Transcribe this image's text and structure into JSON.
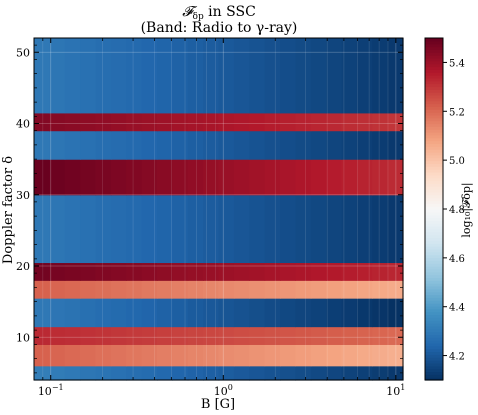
{
  "chart_data": {
    "type": "heatmap",
    "title_line1": "𝓕",
    "title_sub": "δp",
    "title_line1_rest": " in SSC",
    "title_line2": "(Band: Radio to γ-ray)",
    "xlabel": "B [G]",
    "ylabel": "Doppler factor δ",
    "x_scale": "log",
    "xlim": [
      0.08,
      11
    ],
    "ylim": [
      4,
      52
    ],
    "x_ticks": [
      {
        "value": 0.1,
        "base": "10",
        "exp": "−1"
      },
      {
        "value": 1,
        "base": "10",
        "exp": "0"
      },
      {
        "value": 10,
        "base": "10",
        "exp": "1"
      }
    ],
    "y_ticks": [
      10,
      20,
      30,
      40,
      50
    ],
    "grid": true,
    "colormap": "RdBu_r",
    "colorbar": {
      "label": "log₁₀|𝓕δp|",
      "vmin": 4.1,
      "vmax": 5.5,
      "ticks": [
        "4.2",
        "4.4",
        "4.6",
        "4.8",
        "5.0",
        "5.2",
        "5.4"
      ],
      "tick_values": [
        4.2,
        4.4,
        4.6,
        4.8,
        5.0,
        5.2,
        5.4
      ]
    },
    "bands": [
      {
        "y_from": 4,
        "y_to": 6,
        "left": 4.32,
        "right": 4.12
      },
      {
        "y_from": 6,
        "y_to": 9,
        "left": 5.22,
        "right": 5.05
      },
      {
        "y_from": 9,
        "y_to": 11.5,
        "left": 5.33,
        "right": 5.2
      },
      {
        "y_from": 11.5,
        "y_to": 15.5,
        "left": 4.3,
        "right": 4.1
      },
      {
        "y_from": 15.5,
        "y_to": 18,
        "left": 5.22,
        "right": 5.06
      },
      {
        "y_from": 18,
        "y_to": 20.5,
        "left": 5.48,
        "right": 5.33
      },
      {
        "y_from": 20.5,
        "y_to": 30,
        "left": 4.3,
        "right": 4.12
      },
      {
        "y_from": 30,
        "y_to": 35,
        "left": 5.5,
        "right": 5.32
      },
      {
        "y_from": 35,
        "y_to": 39,
        "left": 4.3,
        "right": 4.12
      },
      {
        "y_from": 39,
        "y_to": 41.5,
        "left": 5.45,
        "right": 5.3
      },
      {
        "y_from": 41.5,
        "y_to": 52,
        "left": 4.3,
        "right": 4.12
      }
    ]
  }
}
